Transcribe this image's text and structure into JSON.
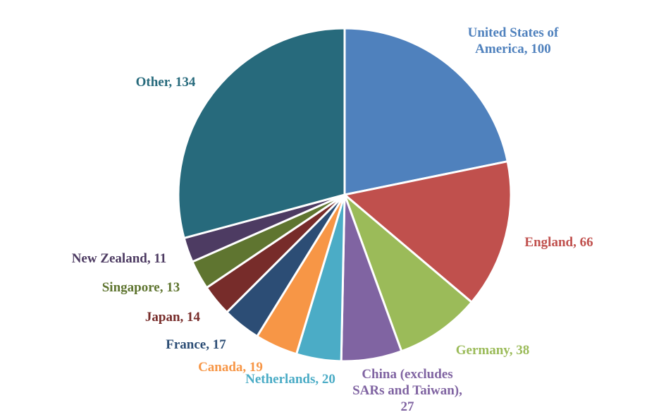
{
  "chart_data": {
    "type": "pie",
    "title": "",
    "start_angle_deg": 0,
    "direction": "clockwise",
    "slices": [
      {
        "label_lines": [
          "United States of",
          "America, 100"
        ],
        "name": "United States of America",
        "value": 100,
        "color": "#4F81BD"
      },
      {
        "label_lines": [
          "England, 66"
        ],
        "name": "England",
        "value": 66,
        "color": "#C0504D"
      },
      {
        "label_lines": [
          "Germany, 38"
        ],
        "name": "Germany",
        "value": 38,
        "color": "#9BBB59"
      },
      {
        "label_lines": [
          "China (excludes",
          "SARs and Taiwan),",
          "27"
        ],
        "name": "China (excludes SARs and Taiwan)",
        "value": 27,
        "color": "#8064A2"
      },
      {
        "label_lines": [
          "Netherlands, 20"
        ],
        "name": "Netherlands",
        "value": 20,
        "color": "#4BACC6"
      },
      {
        "label_lines": [
          "Canada, 19"
        ],
        "name": "Canada",
        "value": 19,
        "color": "#F79646"
      },
      {
        "label_lines": [
          "France, 17"
        ],
        "name": "France",
        "value": 17,
        "color": "#2C4D75"
      },
      {
        "label_lines": [
          "Japan, 14"
        ],
        "name": "Japan",
        "value": 14,
        "color": "#772C2A"
      },
      {
        "label_lines": [
          "Singapore, 13"
        ],
        "name": "Singapore",
        "value": 13,
        "color": "#5F7530"
      },
      {
        "label_lines": [
          "New Zealand, 11"
        ],
        "name": "New Zealand",
        "value": 11,
        "color": "#4D3B62"
      },
      {
        "label_lines": [
          "Other, 134"
        ],
        "name": "Other",
        "value": 134,
        "color": "#276A7C"
      }
    ],
    "legend": "none"
  }
}
